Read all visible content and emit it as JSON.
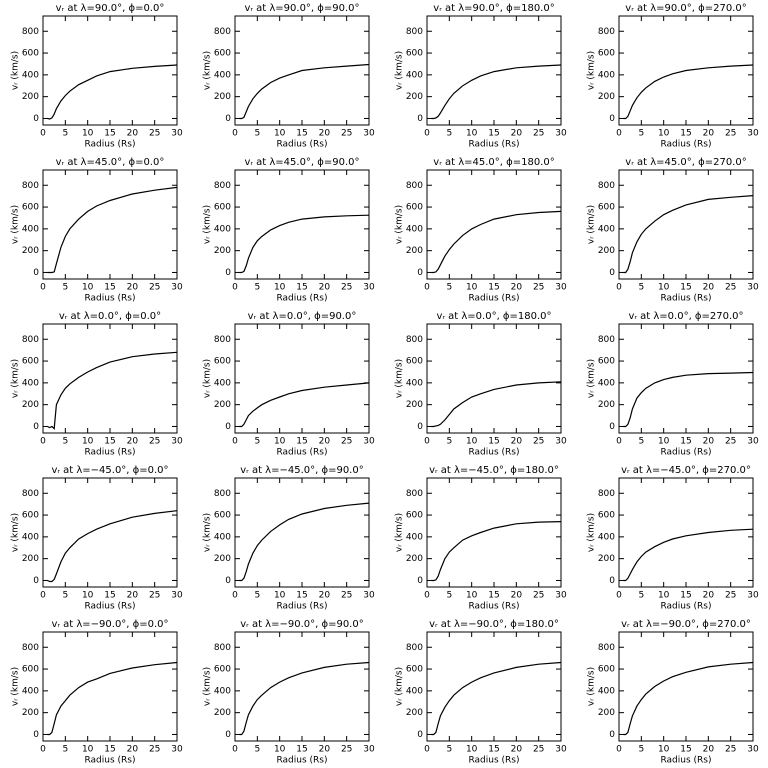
{
  "chart_data": [
    {
      "type": "line",
      "title": "vᵣ at λ=90.0°, ϕ=0.0°",
      "xlabel": "Radius (Rs)",
      "ylabel": "vᵣ (km/s)",
      "x": [
        1,
        1.5,
        2,
        2.5,
        3,
        4,
        5,
        6,
        8,
        10,
        12,
        15,
        20,
        25,
        30
      ],
      "values": [
        0,
        -5,
        5,
        40,
        90,
        160,
        210,
        250,
        310,
        350,
        390,
        430,
        460,
        478,
        490
      ],
      "xlim": [
        0,
        30
      ],
      "ylim": [
        -60,
        940
      ],
      "xticks": [
        0,
        5,
        10,
        15,
        20,
        25,
        30
      ],
      "yticks": [
        0,
        200,
        400,
        600,
        800
      ],
      "color": "#000000"
    },
    {
      "type": "line",
      "title": "vᵣ at λ=90.0°, ϕ=90.0°",
      "xlabel": "Radius (Rs)",
      "ylabel": "vᵣ (km/s)",
      "x": [
        1,
        1.5,
        2,
        2.5,
        3,
        4,
        5,
        6,
        8,
        10,
        12,
        15,
        20,
        25,
        30
      ],
      "values": [
        0,
        0,
        10,
        60,
        110,
        180,
        230,
        270,
        330,
        370,
        400,
        440,
        465,
        480,
        495
      ],
      "xlim": [
        0,
        30
      ],
      "ylim": [
        -60,
        940
      ],
      "xticks": [
        0,
        5,
        10,
        15,
        20,
        25,
        30
      ],
      "yticks": [
        0,
        200,
        400,
        600,
        800
      ],
      "color": "#000000"
    },
    {
      "type": "line",
      "title": "vᵣ at λ=90.0°, ϕ=180.0°",
      "xlabel": "Radius (Rs)",
      "ylabel": "vᵣ (km/s)",
      "x": [
        1,
        1.5,
        2,
        2.5,
        3,
        4,
        5,
        6,
        8,
        10,
        12,
        15,
        20,
        25,
        30
      ],
      "values": [
        0,
        0,
        5,
        20,
        50,
        120,
        180,
        230,
        300,
        350,
        390,
        430,
        465,
        480,
        490
      ],
      "xlim": [
        0,
        30
      ],
      "ylim": [
        -60,
        940
      ],
      "xticks": [
        0,
        5,
        10,
        15,
        20,
        25,
        30
      ],
      "yticks": [
        0,
        200,
        400,
        600,
        800
      ],
      "color": "#000000"
    },
    {
      "type": "line",
      "title": "vᵣ at λ=90.0°, ϕ=270.0°",
      "xlabel": "Radius (Rs)",
      "ylabel": "vᵣ (km/s)",
      "x": [
        1,
        1.5,
        2,
        2.5,
        3,
        4,
        5,
        6,
        8,
        10,
        12,
        15,
        20,
        25,
        30
      ],
      "values": [
        0,
        0,
        20,
        70,
        120,
        190,
        240,
        280,
        340,
        380,
        410,
        440,
        465,
        480,
        490
      ],
      "xlim": [
        0,
        30
      ],
      "ylim": [
        -60,
        940
      ],
      "xticks": [
        0,
        5,
        10,
        15,
        20,
        25,
        30
      ],
      "yticks": [
        0,
        200,
        400,
        600,
        800
      ],
      "color": "#000000"
    },
    {
      "type": "line",
      "title": "vᵣ at λ=45.0°, ϕ=0.0°",
      "xlabel": "Radius (Rs)",
      "ylabel": "vᵣ (km/s)",
      "x": [
        1,
        1.5,
        2,
        2.5,
        3,
        4,
        5,
        6,
        8,
        10,
        12,
        15,
        20,
        25,
        30
      ],
      "values": [
        0,
        0,
        0,
        5,
        80,
        230,
        330,
        400,
        490,
        560,
        610,
        660,
        720,
        755,
        780
      ],
      "xlim": [
        0,
        30
      ],
      "ylim": [
        -60,
        940
      ],
      "xticks": [
        0,
        5,
        10,
        15,
        20,
        25,
        30
      ],
      "yticks": [
        0,
        200,
        400,
        600,
        800
      ],
      "color": "#000000"
    },
    {
      "type": "line",
      "title": "vᵣ at λ=45.0°, ϕ=90.0°",
      "xlabel": "Radius (Rs)",
      "ylabel": "vᵣ (km/s)",
      "x": [
        1,
        1.5,
        2,
        2.5,
        3,
        4,
        5,
        6,
        8,
        10,
        12,
        15,
        20,
        25,
        30
      ],
      "values": [
        0,
        0,
        10,
        60,
        130,
        230,
        290,
        330,
        390,
        430,
        460,
        490,
        510,
        520,
        525
      ],
      "xlim": [
        0,
        30
      ],
      "ylim": [
        -60,
        940
      ],
      "xticks": [
        0,
        5,
        10,
        15,
        20,
        25,
        30
      ],
      "yticks": [
        0,
        200,
        400,
        600,
        800
      ],
      "color": "#000000"
    },
    {
      "type": "line",
      "title": "vᵣ at λ=45.0°, ϕ=180.0°",
      "xlabel": "Radius (Rs)",
      "ylabel": "vᵣ (km/s)",
      "x": [
        1,
        1.5,
        2,
        2.5,
        3,
        4,
        5,
        6,
        8,
        10,
        12,
        15,
        20,
        25,
        30
      ],
      "values": [
        0,
        0,
        5,
        30,
        70,
        150,
        210,
        260,
        340,
        400,
        440,
        490,
        530,
        550,
        560
      ],
      "xlim": [
        0,
        30
      ],
      "ylim": [
        -60,
        940
      ],
      "xticks": [
        0,
        5,
        10,
        15,
        20,
        25,
        30
      ],
      "yticks": [
        0,
        200,
        400,
        600,
        800
      ],
      "color": "#000000"
    },
    {
      "type": "line",
      "title": "vᵣ at λ=45.0°, ϕ=270.0°",
      "xlabel": "Radius (Rs)",
      "ylabel": "vᵣ (km/s)",
      "x": [
        1,
        1.5,
        2,
        2.5,
        3,
        4,
        5,
        6,
        8,
        10,
        12,
        15,
        20,
        25,
        30
      ],
      "values": [
        0,
        0,
        30,
        100,
        180,
        280,
        350,
        400,
        470,
        530,
        570,
        620,
        670,
        690,
        705
      ],
      "xlim": [
        0,
        30
      ],
      "ylim": [
        -60,
        940
      ],
      "xticks": [
        0,
        5,
        10,
        15,
        20,
        25,
        30
      ],
      "yticks": [
        0,
        200,
        400,
        600,
        800
      ],
      "color": "#000000"
    },
    {
      "type": "line",
      "title": "vᵣ at λ=0.0°, ϕ=0.0°",
      "xlabel": "Radius (Rs)",
      "ylabel": "vᵣ (km/s)",
      "x": [
        1,
        1.5,
        2,
        2.5,
        3,
        4,
        5,
        6,
        8,
        10,
        12,
        15,
        20,
        25,
        30
      ],
      "values": [
        0,
        -10,
        0,
        -20,
        200,
        290,
        350,
        390,
        450,
        500,
        540,
        590,
        640,
        665,
        680
      ],
      "xlim": [
        0,
        30
      ],
      "ylim": [
        -60,
        940
      ],
      "xticks": [
        0,
        5,
        10,
        15,
        20,
        25,
        30
      ],
      "yticks": [
        0,
        200,
        400,
        600,
        800
      ],
      "color": "#000000"
    },
    {
      "type": "line",
      "title": "vᵣ at λ=0.0°, ϕ=90.0°",
      "xlabel": "Radius (Rs)",
      "ylabel": "vᵣ (km/s)",
      "x": [
        1,
        1.5,
        2,
        2.5,
        3,
        4,
        5,
        6,
        8,
        10,
        12,
        15,
        20,
        25,
        30
      ],
      "values": [
        0,
        0,
        20,
        60,
        100,
        140,
        170,
        200,
        240,
        270,
        300,
        330,
        360,
        380,
        400
      ],
      "xlim": [
        0,
        30
      ],
      "ylim": [
        -60,
        940
      ],
      "xticks": [
        0,
        5,
        10,
        15,
        20,
        25,
        30
      ],
      "yticks": [
        0,
        200,
        400,
        600,
        800
      ],
      "color": "#000000"
    },
    {
      "type": "line",
      "title": "vᵣ at λ=0.0°, ϕ=180.0°",
      "xlabel": "Radius (Rs)",
      "ylabel": "vᵣ (km/s)",
      "x": [
        1,
        1.5,
        2,
        2.5,
        3,
        4,
        5,
        6,
        8,
        10,
        12,
        15,
        20,
        25,
        30
      ],
      "values": [
        0,
        0,
        5,
        10,
        20,
        60,
        110,
        160,
        220,
        270,
        300,
        340,
        380,
        400,
        410
      ],
      "xlim": [
        0,
        30
      ],
      "ylim": [
        -60,
        940
      ],
      "xticks": [
        0,
        5,
        10,
        15,
        20,
        25,
        30
      ],
      "yticks": [
        0,
        200,
        400,
        600,
        800
      ],
      "color": "#000000"
    },
    {
      "type": "line",
      "title": "vᵣ at λ=0.0°, ϕ=270.0°",
      "xlabel": "Radius (Rs)",
      "ylabel": "vᵣ (km/s)",
      "x": [
        1,
        1.5,
        2,
        2.5,
        3,
        4,
        5,
        6,
        8,
        10,
        12,
        15,
        20,
        25,
        30
      ],
      "values": [
        0,
        0,
        20,
        80,
        160,
        260,
        310,
        350,
        400,
        430,
        450,
        470,
        485,
        490,
        495
      ],
      "xlim": [
        0,
        30
      ],
      "ylim": [
        -60,
        940
      ],
      "xticks": [
        0,
        5,
        10,
        15,
        20,
        25,
        30
      ],
      "yticks": [
        0,
        200,
        400,
        600,
        800
      ],
      "color": "#000000"
    },
    {
      "type": "line",
      "title": "vᵣ at λ=−45.0°, ϕ=0.0°",
      "xlabel": "Radius (Rs)",
      "ylabel": "vᵣ (km/s)",
      "x": [
        1,
        1.5,
        2,
        2.5,
        3,
        4,
        5,
        6,
        8,
        10,
        12,
        15,
        20,
        25,
        30
      ],
      "values": [
        0,
        -10,
        -10,
        10,
        60,
        170,
        250,
        300,
        380,
        430,
        470,
        520,
        580,
        615,
        640
      ],
      "xlim": [
        0,
        30
      ],
      "ylim": [
        -60,
        940
      ],
      "xticks": [
        0,
        5,
        10,
        15,
        20,
        25,
        30
      ],
      "yticks": [
        0,
        200,
        400,
        600,
        800
      ],
      "color": "#000000"
    },
    {
      "type": "line",
      "title": "vᵣ at λ=−45.0°, ϕ=90.0°",
      "xlabel": "Radius (Rs)",
      "ylabel": "vᵣ (km/s)",
      "x": [
        1,
        1.5,
        2,
        2.5,
        3,
        4,
        5,
        6,
        8,
        10,
        12,
        15,
        20,
        25,
        30
      ],
      "values": [
        0,
        0,
        20,
        80,
        150,
        250,
        320,
        370,
        450,
        510,
        560,
        610,
        660,
        690,
        710
      ],
      "xlim": [
        0,
        30
      ],
      "ylim": [
        -60,
        940
      ],
      "xticks": [
        0,
        5,
        10,
        15,
        20,
        25,
        30
      ],
      "yticks": [
        0,
        200,
        400,
        600,
        800
      ],
      "color": "#000000"
    },
    {
      "type": "line",
      "title": "vᵣ at λ=−45.0°, ϕ=180.0°",
      "xlabel": "Radius (Rs)",
      "ylabel": "vᵣ (km/s)",
      "x": [
        1,
        1.5,
        2,
        2.5,
        3,
        4,
        5,
        6,
        8,
        10,
        12,
        15,
        20,
        25,
        30
      ],
      "values": [
        0,
        0,
        5,
        40,
        100,
        200,
        260,
        300,
        370,
        410,
        440,
        480,
        520,
        535,
        540
      ],
      "xlim": [
        0,
        30
      ],
      "ylim": [
        -60,
        940
      ],
      "xticks": [
        0,
        5,
        10,
        15,
        20,
        25,
        30
      ],
      "yticks": [
        0,
        200,
        400,
        600,
        800
      ],
      "color": "#000000"
    },
    {
      "type": "line",
      "title": "vᵣ at λ=−45.0°, ϕ=270.0°",
      "xlabel": "Radius (Rs)",
      "ylabel": "vᵣ (km/s)",
      "x": [
        1,
        1.5,
        2,
        2.5,
        3,
        4,
        5,
        6,
        8,
        10,
        12,
        15,
        20,
        25,
        30
      ],
      "values": [
        0,
        0,
        20,
        60,
        100,
        170,
        220,
        260,
        310,
        350,
        380,
        410,
        440,
        460,
        470
      ],
      "xlim": [
        0,
        30
      ],
      "ylim": [
        -60,
        940
      ],
      "xticks": [
        0,
        5,
        10,
        15,
        20,
        25,
        30
      ],
      "yticks": [
        0,
        200,
        400,
        600,
        800
      ],
      "color": "#000000"
    },
    {
      "type": "line",
      "title": "vᵣ at λ=−90.0°, ϕ=0.0°",
      "xlabel": "Radius (Rs)",
      "ylabel": "vᵣ (km/s)",
      "x": [
        1,
        1.5,
        2,
        2.5,
        3,
        4,
        5,
        6,
        8,
        10,
        12,
        15,
        20,
        25,
        30
      ],
      "values": [
        0,
        0,
        20,
        100,
        180,
        260,
        310,
        360,
        430,
        480,
        510,
        560,
        610,
        640,
        660
      ],
      "xlim": [
        0,
        30
      ],
      "ylim": [
        -60,
        940
      ],
      "xticks": [
        0,
        5,
        10,
        15,
        20,
        25,
        30
      ],
      "yticks": [
        0,
        200,
        400,
        600,
        800
      ],
      "color": "#000000"
    },
    {
      "type": "line",
      "title": "vᵣ at λ=−90.0°, ϕ=90.0°",
      "xlabel": "Radius (Rs)",
      "ylabel": "vᵣ (km/s)",
      "x": [
        1,
        1.5,
        2,
        2.5,
        3,
        4,
        5,
        6,
        8,
        10,
        12,
        15,
        20,
        25,
        30
      ],
      "values": [
        0,
        0,
        30,
        110,
        180,
        260,
        320,
        360,
        430,
        480,
        520,
        565,
        615,
        645,
        660
      ],
      "xlim": [
        0,
        30
      ],
      "ylim": [
        -60,
        940
      ],
      "xticks": [
        0,
        5,
        10,
        15,
        20,
        25,
        30
      ],
      "yticks": [
        0,
        200,
        400,
        600,
        800
      ],
      "color": "#000000"
    },
    {
      "type": "line",
      "title": "vᵣ at λ=−90.0°, ϕ=180.0°",
      "xlabel": "Radius (Rs)",
      "ylabel": "vᵣ (km/s)",
      "x": [
        1,
        1.5,
        2,
        2.5,
        3,
        4,
        5,
        6,
        8,
        10,
        12,
        15,
        20,
        25,
        30
      ],
      "values": [
        0,
        0,
        20,
        100,
        170,
        250,
        310,
        360,
        430,
        480,
        520,
        565,
        615,
        645,
        660
      ],
      "xlim": [
        0,
        30
      ],
      "ylim": [
        -60,
        940
      ],
      "xticks": [
        0,
        5,
        10,
        15,
        20,
        25,
        30
      ],
      "yticks": [
        0,
        200,
        400,
        600,
        800
      ],
      "color": "#000000"
    },
    {
      "type": "line",
      "title": "vᵣ at λ=−90.0°, ϕ=270.0°",
      "xlabel": "Radius (Rs)",
      "ylabel": "vᵣ (km/s)",
      "x": [
        1,
        1.5,
        2,
        2.5,
        3,
        4,
        5,
        6,
        8,
        10,
        12,
        15,
        20,
        25,
        30
      ],
      "values": [
        0,
        0,
        20,
        100,
        170,
        260,
        320,
        370,
        440,
        490,
        530,
        570,
        620,
        645,
        660
      ],
      "xlim": [
        0,
        30
      ],
      "ylim": [
        -60,
        940
      ],
      "xticks": [
        0,
        5,
        10,
        15,
        20,
        25,
        30
      ],
      "yticks": [
        0,
        200,
        400,
        600,
        800
      ],
      "color": "#000000"
    }
  ]
}
